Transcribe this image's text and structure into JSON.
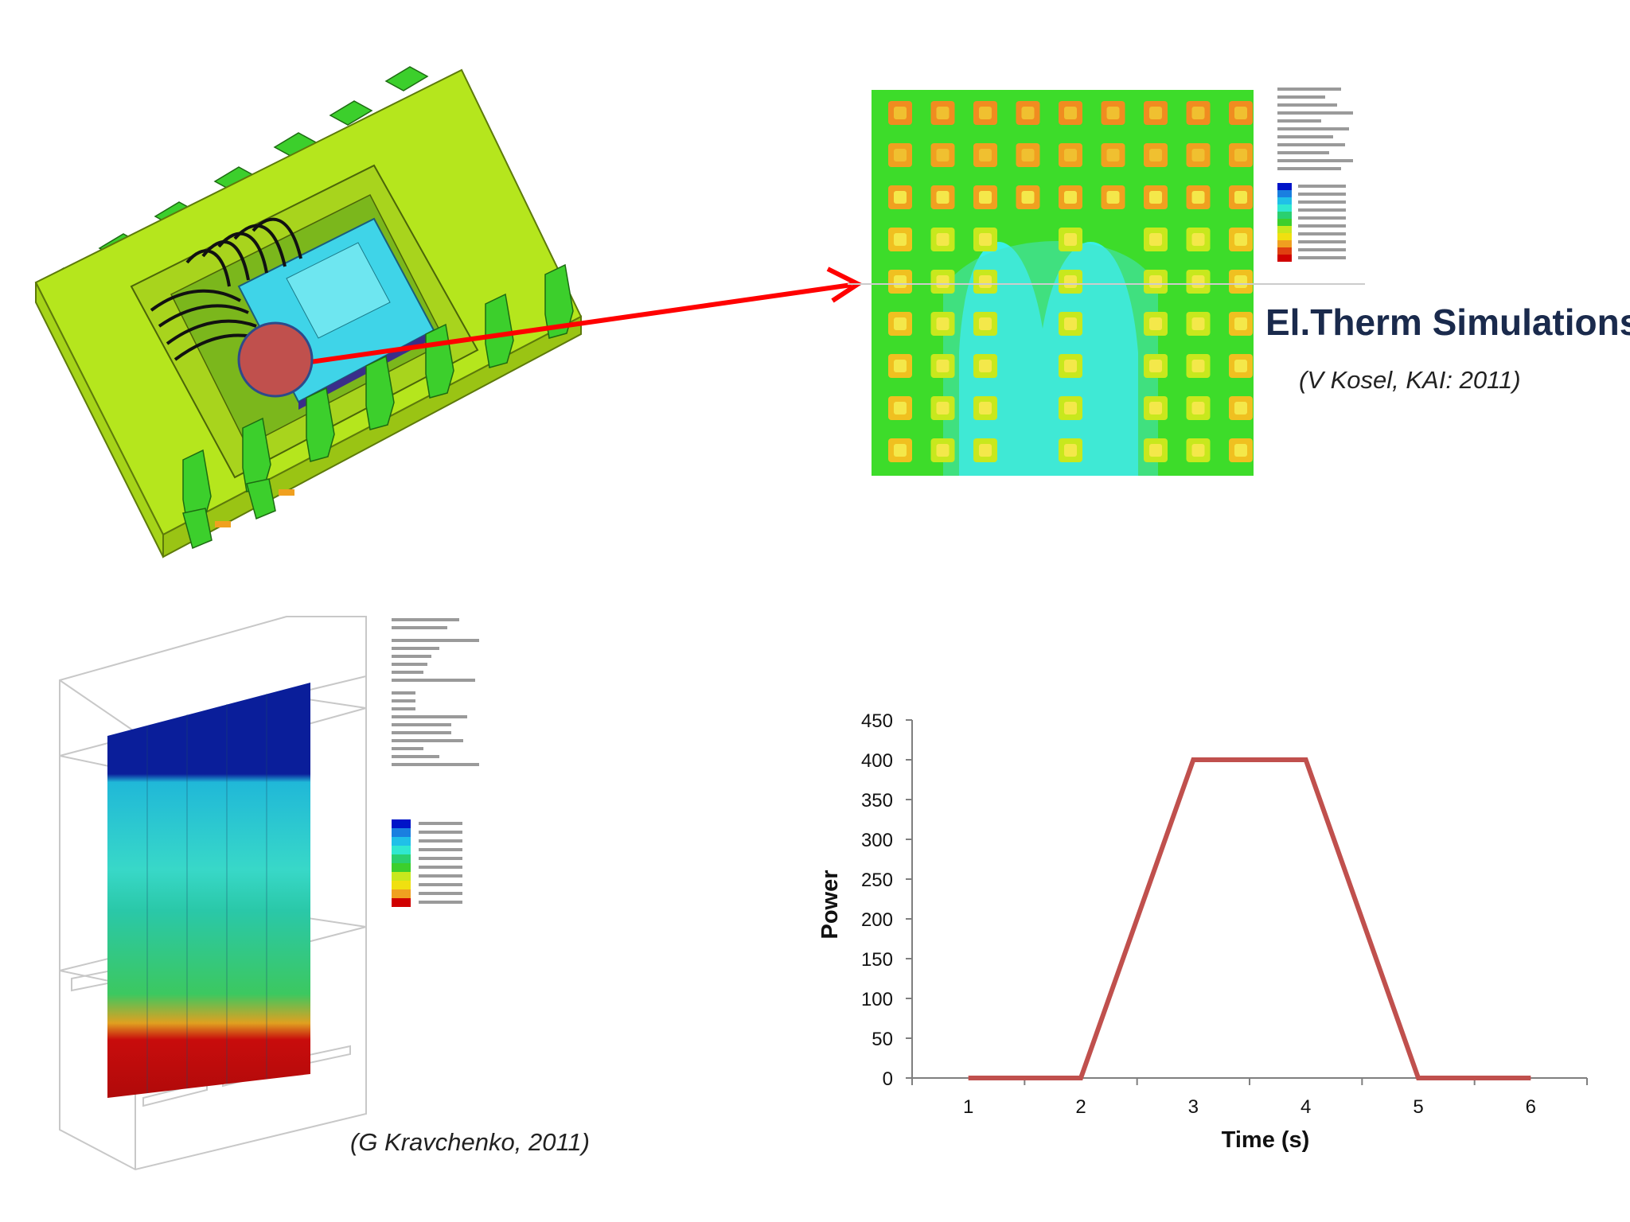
{
  "heading": {
    "title": "El.Therm Simulations"
  },
  "credits": {
    "thermal_map": "(V Kosel, KAI: 2011)",
    "cross_section": "(G Kravchenko,  2011)"
  },
  "colors": {
    "package_body": "#b5e61d",
    "arrow": "#ff0000",
    "marker": "#c0504d",
    "line": "#c0504d"
  },
  "chart_data": {
    "type": "line",
    "x": [
      1,
      2,
      3,
      4,
      5,
      6
    ],
    "categories": [
      "1",
      "2",
      "3",
      "4",
      "5",
      "6"
    ],
    "values": [
      0,
      0,
      400,
      400,
      0,
      0
    ],
    "xlabel": "Time (s)",
    "ylabel": "Power",
    "ylim": [
      0,
      450
    ],
    "yticks": [
      "0",
      "50",
      "100",
      "150",
      "200",
      "250",
      "300",
      "350",
      "400",
      "450"
    ],
    "grid": false
  }
}
